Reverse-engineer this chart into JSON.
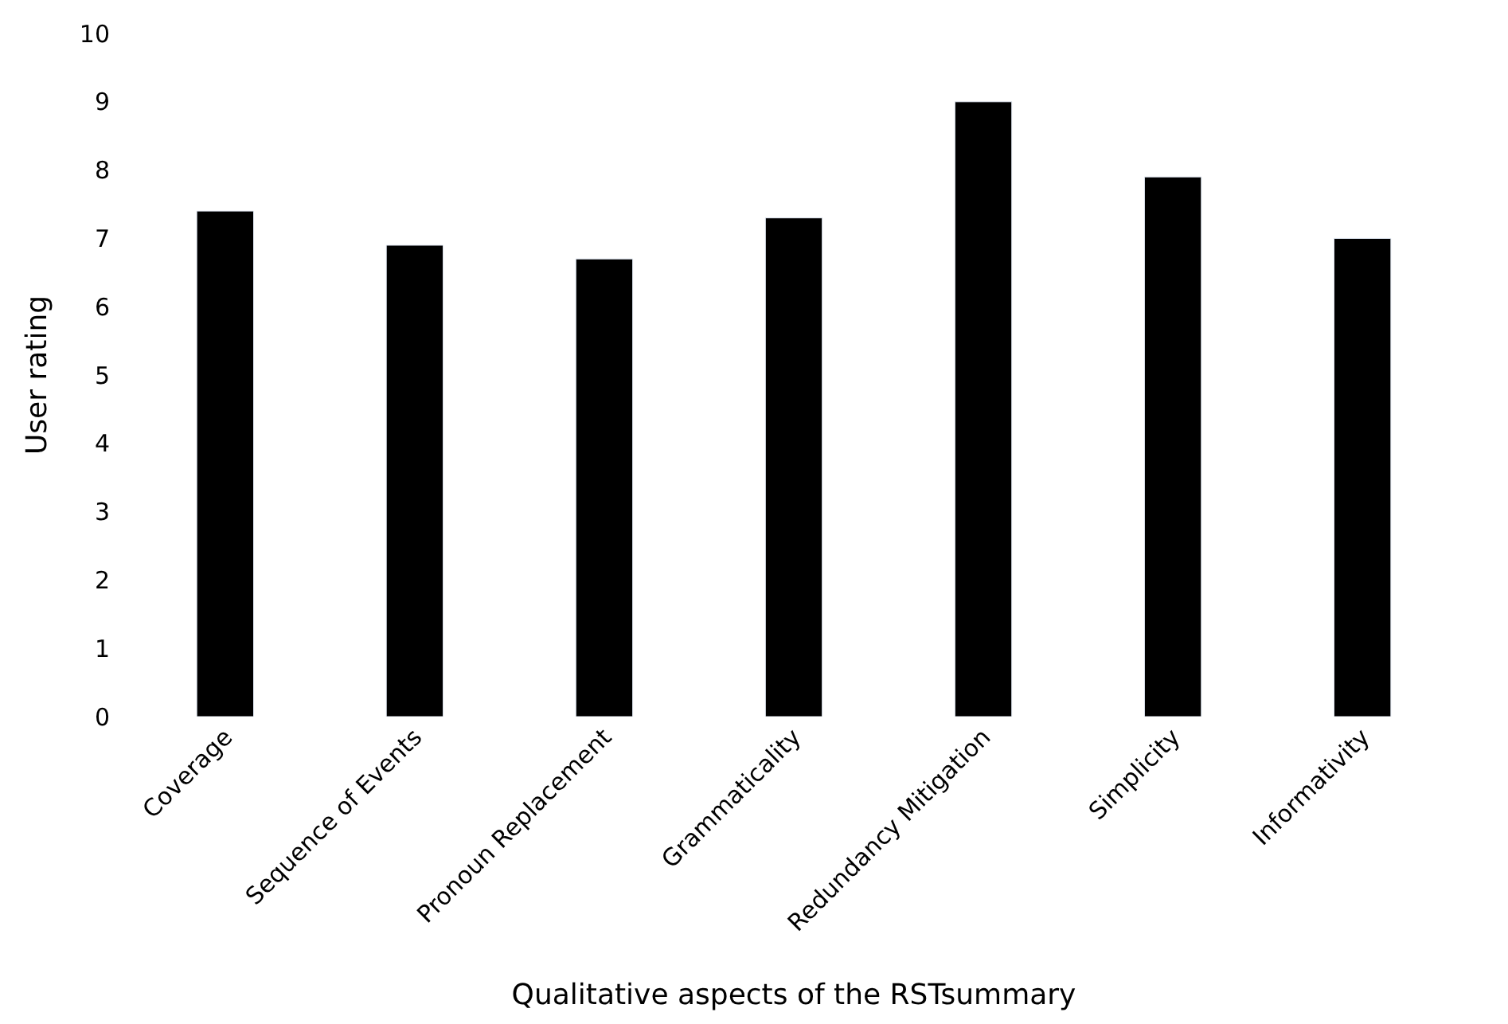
{
  "chart_data": {
    "type": "bar",
    "xlabel": "Qualitative aspects of the RSTsummary",
    "ylabel": "User rating",
    "categories": [
      "Coverage",
      "Sequence of Events",
      "Pronoun Replacement",
      "Grammaticality",
      "Redundancy Mitigation",
      "Simplicity",
      "Informativity"
    ],
    "values": [
      7.4,
      6.9,
      6.7,
      7.3,
      9.0,
      7.9,
      7.0
    ],
    "color": "#000000",
    "ylim": [
      0,
      10
    ],
    "yticks": [
      0,
      1,
      2,
      3,
      4,
      5,
      6,
      7,
      8,
      9,
      10
    ]
  }
}
